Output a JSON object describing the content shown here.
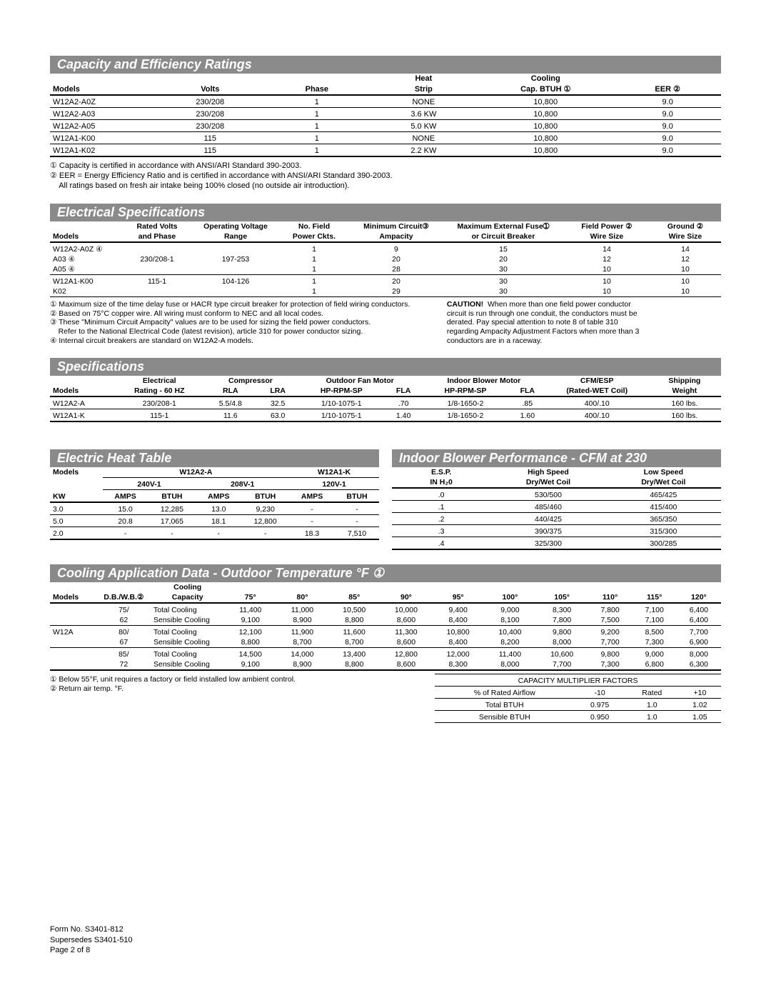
{
  "capacity": {
    "title": "Capacity and Efficiency Ratings",
    "headers": {
      "models": "Models",
      "volts": "Volts",
      "phase": "Phase",
      "heat": "Heat",
      "strip": "Strip",
      "cooling": "Cooling",
      "cap": "Cap. BTUH ①",
      "eer": "EER ②"
    },
    "rows": [
      {
        "m": "W12A2-A0Z",
        "v": "230/208",
        "p": "1",
        "h": "NONE",
        "c": "10,800",
        "e": "9.0"
      },
      {
        "m": "W12A2-A03",
        "v": "230/208",
        "p": "1",
        "h": "3.6 KW",
        "c": "10,800",
        "e": "9.0"
      },
      {
        "m": "W12A2-A05",
        "v": "230/208",
        "p": "1",
        "h": "5.0 KW",
        "c": "10,800",
        "e": "9.0"
      },
      {
        "m": "W12A1-K00",
        "v": "115",
        "p": "1",
        "h": "NONE",
        "c": "10,800",
        "e": "9.0"
      },
      {
        "m": "W12A1-K02",
        "v": "115",
        "p": "1",
        "h": "2.2 KW",
        "c": "10,800",
        "e": "9.0"
      }
    ],
    "notes": [
      "① Capacity is certified in accordance with ANSI/ARI Standard 390-2003.",
      "② EER = Energy Efficiency Ratio and is certified in accordance with ANSI/ARI Standard 390-2003.",
      "    All ratings based on fresh air intake being 100% closed (no outside air introduction)."
    ]
  },
  "electrical": {
    "title": "Electrical Specifications",
    "headers": {
      "models": "Models",
      "rated1": "Rated Volts",
      "rated2": "and Phase",
      "op1": "Operating Voltage",
      "op2": "Range",
      "nf1": "No. Field",
      "nf2": "Power Ckts.",
      "mc1": "Minimum Circuit③",
      "mc2": "Ampacity",
      "mx1": "Maximum External Fuse➀",
      "mx2": "or Circuit Breaker",
      "fp1": "Field Power ②",
      "fp2": "Wire Size",
      "g1": "Ground ②",
      "g2": "Wire Size"
    },
    "groups": [
      {
        "label": "W12A2-A0Z ④",
        "sublabels": [
          "A03 ④",
          "A05 ④"
        ],
        "rvp": "230/208-1",
        "ovr": "197-253",
        "rows": [
          [
            "1",
            "9",
            "15",
            "14",
            "14"
          ],
          [
            "1",
            "20",
            "20",
            "12",
            "12"
          ],
          [
            "1",
            "28",
            "30",
            "10",
            "10"
          ]
        ]
      },
      {
        "label": "W12A1-K00",
        "sublabels": [
          "K02"
        ],
        "rvp": "115-1",
        "ovr": "104-126",
        "rows": [
          [
            "1",
            "20",
            "30",
            "10",
            "10"
          ],
          [
            "1",
            "29",
            "30",
            "10",
            "10"
          ]
        ]
      }
    ],
    "leftNotes": [
      "① Maximum size of the time delay fuse or HACR type circuit breaker for protection of field wiring conductors.",
      "② Based on 75°C copper wire. All wiring must conform to NEC and all local codes.",
      "③ These \"Minimum Circuit Ampacity\" values are to be used for sizing the field power conductors.",
      "    Refer to the National Electrical Code (latest revision), article 310 for power conductor sizing.",
      "④ Internal circuit breakers are standard on W12A2-A models."
    ],
    "rightNotes": [
      "CAUTION!  When more than one field power conductor",
      "circuit is run through one conduit, the conductors must be",
      "derated. Pay special attention to note 8 of table 310",
      "regarding Ampacity Adjustment Factors when more than 3",
      "conductors are in a raceway."
    ]
  },
  "specs": {
    "title": "Specifications",
    "headers": {
      "models": "Models",
      "elec1": "Electrical",
      "elec2": "Rating - 60 HZ",
      "comp": "Compressor",
      "rla": "RLA",
      "lra": "LRA",
      "ofm": "Outdoor Fan Motor",
      "hpr": "HP-RPM-SP",
      "fla": "FLA",
      "ibm": "Indoor Blower Motor",
      "cfm1": "CFM/ESP",
      "cfm2": "(Rated-WET Coil)",
      "ship1": "Shipping",
      "ship2": "Weight"
    },
    "rows": [
      {
        "m": "W12A2-A",
        "er": "230/208-1",
        "rla": "5.5/4.8",
        "lra": "32.5",
        "ohp": "1/10-1075-1",
        "ofla": ".70",
        "ihp": "1/8-1650-2",
        "ifla": ".85",
        "cfm": "400/.10",
        "w": "160 lbs."
      },
      {
        "m": "W12A1-K",
        "er": "115-1",
        "rla": "11.6",
        "lra": "63.0",
        "ohp": "1/10-1075-1",
        "ofla": "1.40",
        "ihp": "1/8-1650-2",
        "ifla": "1.60",
        "cfm": "400/.10",
        "w": "160 lbs."
      }
    ]
  },
  "heatTable": {
    "title": "Electric Heat Table",
    "headers": {
      "models": "Models",
      "m1": "W12A2-A",
      "m2": "W12A1-K",
      "v1": "240V-1",
      "v2": "208V-1",
      "v3": "120V-1",
      "kw": "KW",
      "amps": "AMPS",
      "btuh": "BTUH"
    },
    "rows": [
      {
        "kw": "3.0",
        "a1": "15.0",
        "b1": "12,285",
        "a2": "13.0",
        "b2": "9,230",
        "a3": "-",
        "b3": "-"
      },
      {
        "kw": "5.0",
        "a1": "20.8",
        "b1": "17,065",
        "a2": "18.1",
        "b2": "12,800",
        "a3": "-",
        "b3": "-"
      },
      {
        "kw": "2.0",
        "a1": "-",
        "b1": "-",
        "a2": "-",
        "b2": "-",
        "a3": "18.3",
        "b3": "7,510"
      }
    ]
  },
  "blower": {
    "title": "Indoor Blower Performance - CFM at 230",
    "headers": {
      "esp1": "E.S.P.",
      "esp2": "IN H₂0",
      "hs1": "High Speed",
      "lc1": "Low Speed",
      "dw": "Dry/Wet Coil"
    },
    "rows": [
      {
        "e": ".0",
        "h": "530/500",
        "l": "465/425"
      },
      {
        "e": ".1",
        "h": "485/460",
        "l": "415/400"
      },
      {
        "e": ".2",
        "h": "440/425",
        "l": "365/350"
      },
      {
        "e": ".3",
        "h": "390/375",
        "l": "315/300"
      },
      {
        "e": ".4",
        "h": "325/300",
        "l": "300/285"
      }
    ]
  },
  "cooling": {
    "title": "Cooling Application Data - Outdoor Temperature °F ①",
    "headers": {
      "models": "Models",
      "db": "D.B./W.B.②",
      "cap1": "Cooling",
      "cap2": "Capacity",
      "t": [
        "75°",
        "80°",
        "85°",
        "90°",
        "95°",
        "100°",
        "105°",
        "110°",
        "115°",
        "120°"
      ]
    },
    "model": "W12A",
    "rows": [
      {
        "db": "75/",
        "cap": "Total Cooling",
        "v": [
          "11,400",
          "11,000",
          "10,500",
          "10,000",
          "9,400",
          "9,000",
          "8,300",
          "7,800",
          "7,100",
          "6,400"
        ]
      },
      {
        "db": "62",
        "cap": "Sensible Cooling",
        "v": [
          "9,100",
          "8,900",
          "8,800",
          "8,600",
          "8,400",
          "8,100",
          "7,800",
          "7,500",
          "7,100",
          "6,400"
        ]
      },
      {
        "db": "80/",
        "cap": "Total Cooling",
        "v": [
          "12,100",
          "11,900",
          "11,600",
          "11,300",
          "10,800",
          "10,400",
          "9,800",
          "9,200",
          "8,500",
          "7,700"
        ]
      },
      {
        "db": "67",
        "cap": "Sensible Cooling",
        "v": [
          "8,800",
          "8,700",
          "8,700",
          "8,600",
          "8,400",
          "8,200",
          "8,000",
          "7,700",
          "7,300",
          "6,900"
        ]
      },
      {
        "db": "85/",
        "cap": "Total Cooling",
        "v": [
          "14,500",
          "14,000",
          "13,400",
          "12,800",
          "12,000",
          "11,400",
          "10,600",
          "9,800",
          "9,000",
          "8,000"
        ]
      },
      {
        "db": "72",
        "cap": "Sensible Cooling",
        "v": [
          "9,100",
          "8,900",
          "8,800",
          "8,600",
          "8,300",
          "8,000",
          "7,700",
          "7,300",
          "6,800",
          "6,300"
        ]
      }
    ],
    "notes": [
      "① Below 55°F, unit requires a factory or field installed low ambient control.",
      "② Return air temp. °F."
    ],
    "multiplier": {
      "title": "CAPACITY MULTIPLIER FACTORS",
      "h": [
        "% of Rated Airflow",
        "-10",
        "Rated",
        "+10"
      ],
      "rows": [
        [
          "Total BTUH",
          "0.975",
          "1.0",
          "1.02"
        ],
        [
          "Sensible BTUH",
          "0.950",
          "1.0",
          "1.05"
        ]
      ]
    }
  },
  "footer": {
    "form": "Form No.    S3401-812",
    "sup": "Supersedes  S3401-510",
    "page": "Page            2 of 8"
  }
}
